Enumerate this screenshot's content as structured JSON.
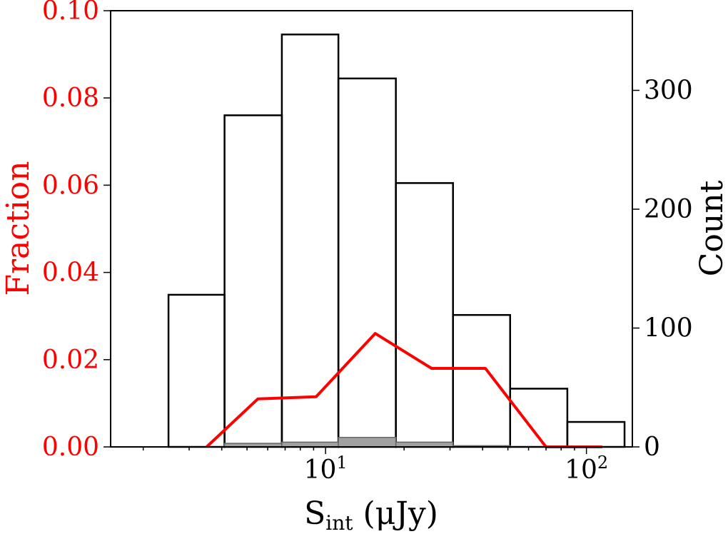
{
  "chart_data": {
    "type": "bar",
    "xscale": "log",
    "xlabel": "S_int (μJy)",
    "xlabel_main": "S",
    "xlabel_sub": "int",
    "xlabel_unit": " (μJy)",
    "xlim": [
      1.5,
      150
    ],
    "x_tick_labels": [
      {
        "value": 10,
        "base": "10",
        "exp": "1"
      },
      {
        "value": 100,
        "base": "10",
        "exp": "2"
      }
    ],
    "ylabel_left": "Fraction",
    "ylim_left": [
      0,
      0.1
    ],
    "y_ticks_left": [
      "0.00",
      "0.02",
      "0.04",
      "0.06",
      "0.08",
      "0.10"
    ],
    "ylabel_right": "Count",
    "ylim_right": [
      0,
      367
    ],
    "y_ticks_right": [
      "0",
      "100",
      "200",
      "300"
    ],
    "bin_edges": [
      2.5,
      4.1,
      6.8,
      11.2,
      18.6,
      30.8,
      51,
      84.5,
      140
    ],
    "series": [
      {
        "axis": "right",
        "style": "outline",
        "counts": [
          128,
          279,
          347,
          310,
          222,
          111,
          49,
          21
        ]
      },
      {
        "axis": "right",
        "style": "filled",
        "counts": [
          0,
          3,
          4,
          8,
          4,
          1,
          0,
          0
        ]
      },
      {
        "axis": "left",
        "style": "line",
        "x": [
          3.5,
          5.5,
          9.2,
          15.5,
          25.5,
          41,
          70,
          115
        ],
        "y": [
          0.0,
          0.011,
          0.0115,
          0.026,
          0.018,
          0.018,
          0.0,
          0.0
        ]
      }
    ],
    "colors": {
      "fraction": "#ff0000",
      "outline": "#000000",
      "filled": "#a0a0a0",
      "axes": "#000000"
    }
  }
}
